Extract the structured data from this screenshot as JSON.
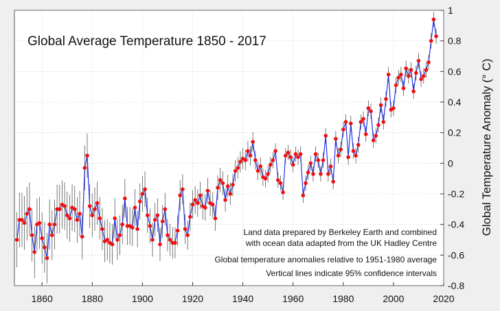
{
  "chart_data": {
    "type": "line",
    "title": "Global Average Temperature 1850 - 2017",
    "xlabel": "",
    "ylabel": "Global Temperature Anomaly (° C)",
    "xlim": [
      1849,
      2020
    ],
    "ylim": [
      -0.8,
      1.0
    ],
    "xticks": [
      1860,
      1880,
      1900,
      1920,
      1940,
      1960,
      1980,
      2000,
      2020
    ],
    "yticks": [
      -0.8,
      -0.6,
      -0.4,
      -0.2,
      0,
      0.2,
      0.4,
      0.6,
      0.8,
      1
    ],
    "ytick_labels": [
      "-0.8",
      "-0.6",
      "-0.4",
      "-0.2",
      "0",
      "0.2",
      "0.4",
      "0.6",
      "0.8",
      "1"
    ],
    "xtick_labels": [
      "1860",
      "1880",
      "1900",
      "1920",
      "1940",
      "1960",
      "1980",
      "2000",
      "2020"
    ],
    "grid": true,
    "y_axis_side": "right",
    "annotations": [
      "Land data prepared by Berkeley Earth and combined",
      "with ocean data adapted from the UK Hadley Centre",
      "Global temperature anomalies relative to 1951-1980 average",
      "Vertical lines indicate 95% confidence intervals"
    ],
    "colors": {
      "line": "#2233dd",
      "point": "#ee1111",
      "error_bar": "#555555",
      "grid": "#bbbbbb"
    },
    "error_bar_halfwidth": [
      0.18,
      0.05
    ],
    "x": [
      1850,
      1851,
      1852,
      1853,
      1854,
      1855,
      1856,
      1857,
      1858,
      1859,
      1860,
      1861,
      1862,
      1863,
      1864,
      1865,
      1866,
      1867,
      1868,
      1869,
      1870,
      1871,
      1872,
      1873,
      1874,
      1875,
      1876,
      1877,
      1878,
      1879,
      1880,
      1881,
      1882,
      1883,
      1884,
      1885,
      1886,
      1887,
      1888,
      1889,
      1890,
      1891,
      1892,
      1893,
      1894,
      1895,
      1896,
      1897,
      1898,
      1899,
      1900,
      1901,
      1902,
      1903,
      1904,
      1905,
      1906,
      1907,
      1908,
      1909,
      1910,
      1911,
      1912,
      1913,
      1914,
      1915,
      1916,
      1917,
      1918,
      1919,
      1920,
      1921,
      1922,
      1923,
      1924,
      1925,
      1926,
      1927,
      1928,
      1929,
      1930,
      1931,
      1932,
      1933,
      1934,
      1935,
      1936,
      1937,
      1938,
      1939,
      1940,
      1941,
      1942,
      1943,
      1944,
      1945,
      1946,
      1947,
      1948,
      1949,
      1950,
      1951,
      1952,
      1953,
      1954,
      1955,
      1956,
      1957,
      1958,
      1959,
      1960,
      1961,
      1962,
      1963,
      1964,
      1965,
      1966,
      1967,
      1968,
      1969,
      1970,
      1971,
      1972,
      1973,
      1974,
      1975,
      1976,
      1977,
      1978,
      1979,
      1980,
      1981,
      1982,
      1983,
      1984,
      1985,
      1986,
      1987,
      1988,
      1989,
      1990,
      1991,
      1992,
      1993,
      1994,
      1995,
      1996,
      1997,
      1998,
      1999,
      2000,
      2001,
      2002,
      2003,
      2004,
      2005,
      2006,
      2007,
      2008,
      2009,
      2010,
      2011,
      2012,
      2013,
      2014,
      2015,
      2016,
      2017
    ],
    "values": [
      -0.5,
      -0.37,
      -0.37,
      -0.39,
      -0.33,
      -0.3,
      -0.47,
      -0.58,
      -0.4,
      -0.39,
      -0.49,
      -0.55,
      -0.62,
      -0.4,
      -0.47,
      -0.4,
      -0.3,
      -0.3,
      -0.27,
      -0.28,
      -0.34,
      -0.36,
      -0.29,
      -0.3,
      -0.37,
      -0.33,
      -0.48,
      -0.03,
      0.05,
      -0.28,
      -0.34,
      -0.3,
      -0.26,
      -0.36,
      -0.43,
      -0.51,
      -0.5,
      -0.52,
      -0.53,
      -0.36,
      -0.5,
      -0.47,
      -0.4,
      -0.23,
      -0.41,
      -0.41,
      -0.42,
      -0.29,
      -0.43,
      -0.25,
      -0.2,
      -0.17,
      -0.34,
      -0.41,
      -0.5,
      -0.37,
      -0.34,
      -0.53,
      -0.38,
      -0.3,
      -0.47,
      -0.5,
      -0.52,
      -0.52,
      -0.44,
      -0.21,
      -0.17,
      -0.43,
      -0.47,
      -0.35,
      -0.27,
      -0.24,
      -0.26,
      -0.21,
      -0.28,
      -0.29,
      -0.18,
      -0.26,
      -0.27,
      -0.36,
      -0.16,
      -0.11,
      -0.13,
      -0.24,
      -0.15,
      -0.2,
      -0.14,
      -0.05,
      -0.03,
      0.01,
      0.03,
      0.02,
      0.08,
      0.05,
      0.14,
      0.02,
      -0.05,
      -0.02,
      -0.09,
      -0.1,
      -0.07,
      -0.01,
      0.02,
      0.08,
      -0.11,
      -0.13,
      -0.19,
      0.05,
      0.07,
      0.04,
      -0.01,
      0.06,
      0.04,
      0.06,
      -0.21,
      -0.13,
      -0.06,
      0.0,
      -0.07,
      0.06,
      0.02,
      -0.07,
      0.02,
      0.18,
      -0.07,
      -0.02,
      -0.12,
      0.16,
      0.05,
      0.09,
      0.22,
      0.27,
      0.04,
      0.26,
      0.08,
      0.05,
      0.12,
      0.27,
      0.29,
      0.19,
      0.36,
      0.34,
      0.15,
      0.18,
      0.25,
      0.38,
      0.27,
      0.42,
      0.58,
      0.35,
      0.36,
      0.51,
      0.56,
      0.58,
      0.49,
      0.62,
      0.57,
      0.61,
      0.47,
      0.59,
      0.67,
      0.55,
      0.57,
      0.61,
      0.66,
      0.8,
      0.94,
      0.83
    ]
  }
}
